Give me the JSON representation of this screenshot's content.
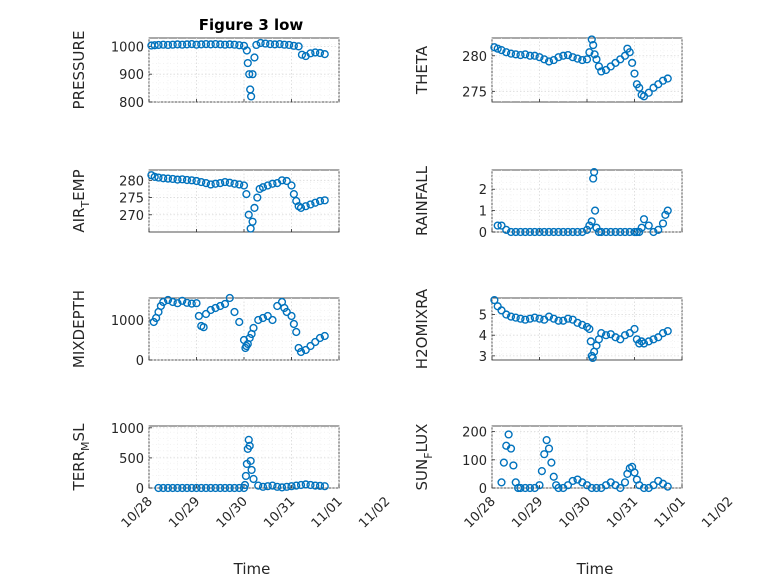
{
  "figure_title": "Figure 3 low",
  "chart_data": [
    {
      "type": "scatter",
      "title": "Figure 3 low",
      "ylabel": "PRESSURE",
      "ylim": [
        800,
        1030
      ],
      "yticks": [
        800,
        900,
        1000
      ],
      "xlim": [
        0,
        4
      ],
      "xticks": [],
      "x": [
        0.05,
        0.12,
        0.2,
        0.3,
        0.4,
        0.5,
        0.6,
        0.7,
        0.8,
        0.9,
        1.0,
        1.1,
        1.2,
        1.3,
        1.4,
        1.5,
        1.6,
        1.7,
        1.8,
        1.9,
        2.0,
        2.06,
        2.08,
        2.11,
        2.13,
        2.15,
        2.18,
        2.22,
        2.26,
        2.35,
        2.45,
        2.55,
        2.65,
        2.75,
        2.85,
        2.95,
        3.05,
        3.15,
        3.22,
        3.3,
        3.4,
        3.5,
        3.6,
        3.7
      ],
      "y": [
        1003,
        1004,
        1005,
        1006,
        1005,
        1006,
        1007,
        1006,
        1007,
        1008,
        1006,
        1007,
        1008,
        1007,
        1008,
        1007,
        1006,
        1007,
        1006,
        1004,
        1002,
        985,
        940,
        900,
        845,
        820,
        900,
        960,
        1005,
        1012,
        1010,
        1008,
        1007,
        1008,
        1006,
        1005,
        1002,
        1000,
        970,
        965,
        975,
        978,
        976,
        972
      ]
    },
    {
      "type": "scatter",
      "ylabel": "THETA",
      "ylim": [
        273.5,
        282.5
      ],
      "yticks": [
        275,
        280
      ],
      "xlim": [
        0,
        4
      ],
      "xticks": [],
      "x": [
        0.05,
        0.12,
        0.2,
        0.3,
        0.4,
        0.5,
        0.6,
        0.7,
        0.8,
        0.9,
        1.0,
        1.1,
        1.2,
        1.3,
        1.4,
        1.5,
        1.6,
        1.7,
        1.8,
        1.9,
        2.0,
        2.05,
        2.1,
        2.13,
        2.16,
        2.2,
        2.25,
        2.3,
        2.4,
        2.5,
        2.6,
        2.7,
        2.8,
        2.85,
        2.9,
        2.95,
        3.0,
        3.05,
        3.1,
        3.15,
        3.2,
        3.3,
        3.4,
        3.5,
        3.6,
        3.7
      ],
      "y": [
        281.2,
        281,
        280.8,
        280.5,
        280.3,
        280.2,
        280.1,
        280.2,
        280,
        280,
        279.8,
        279.5,
        279.2,
        279.4,
        279.8,
        280,
        280.1,
        279.8,
        279.6,
        279.4,
        279.5,
        280.5,
        282.3,
        281.5,
        280.2,
        279.5,
        278.5,
        277.8,
        278,
        278.5,
        279,
        279.5,
        280,
        281,
        280.5,
        279,
        277.5,
        276,
        275.5,
        274.5,
        274.3,
        274.8,
        275.5,
        276,
        276.5,
        276.8
      ]
    },
    {
      "type": "scatter",
      "ylabel": "AIR_TEMP",
      "ylim": [
        265,
        283
      ],
      "yticks": [
        270,
        275,
        280
      ],
      "xlim": [
        0,
        4
      ],
      "xticks": [],
      "x": [
        0.05,
        0.12,
        0.2,
        0.3,
        0.4,
        0.5,
        0.6,
        0.7,
        0.8,
        0.9,
        1.0,
        1.1,
        1.2,
        1.3,
        1.4,
        1.5,
        1.6,
        1.7,
        1.8,
        1.9,
        2.0,
        2.05,
        2.1,
        2.14,
        2.18,
        2.22,
        2.28,
        2.33,
        2.4,
        2.5,
        2.6,
        2.7,
        2.8,
        2.9,
        3.0,
        3.05,
        3.1,
        3.15,
        3.2,
        3.3,
        3.4,
        3.5,
        3.6,
        3.7
      ],
      "y": [
        281.5,
        281,
        280.8,
        280.6,
        280.5,
        280.4,
        280.2,
        280.3,
        280.1,
        280,
        279.8,
        279.5,
        279.2,
        278.8,
        279,
        279.2,
        279.5,
        279.3,
        279,
        278.8,
        278.5,
        276,
        270,
        266,
        268,
        272,
        275,
        277.5,
        278,
        278.5,
        279,
        279.2,
        280,
        279.8,
        278.5,
        276,
        274,
        272.5,
        272,
        272.5,
        273,
        273.5,
        274,
        274.2
      ]
    },
    {
      "type": "scatter",
      "ylabel": "RAINFALL",
      "ylim": [
        0,
        2.9
      ],
      "yticks": [
        0,
        1,
        2
      ],
      "xlim": [
        0,
        4
      ],
      "xticks": [],
      "x": [
        0.12,
        0.2,
        0.3,
        0.4,
        0.5,
        0.6,
        0.7,
        0.8,
        0.9,
        1.0,
        1.1,
        1.2,
        1.3,
        1.4,
        1.5,
        1.6,
        1.7,
        1.8,
        1.9,
        2.0,
        2.05,
        2.1,
        2.13,
        2.15,
        2.17,
        2.2,
        2.25,
        2.3,
        2.4,
        2.5,
        2.6,
        2.7,
        2.8,
        2.9,
        3.0,
        3.05,
        3.1,
        3.15,
        3.2,
        3.3,
        3.4,
        3.5,
        3.6,
        3.65,
        3.7
      ],
      "y": [
        0.3,
        0.3,
        0.1,
        0,
        0,
        0,
        0,
        0,
        0,
        0,
        0,
        0,
        0,
        0,
        0,
        0,
        0,
        0,
        0,
        0.1,
        0.3,
        0.5,
        2.5,
        2.8,
        1.0,
        0.2,
        0,
        0,
        0,
        0,
        0,
        0,
        0,
        0,
        0,
        0,
        0,
        0.2,
        0.6,
        0.3,
        0,
        0.1,
        0.4,
        0.8,
        1.0
      ]
    },
    {
      "type": "scatter",
      "ylabel": "MIXDEPTH",
      "ylim": [
        0,
        1550
      ],
      "yticks": [
        0,
        1000
      ],
      "xlim": [
        0,
        4
      ],
      "xticks": [],
      "x": [
        0.1,
        0.15,
        0.2,
        0.25,
        0.3,
        0.4,
        0.5,
        0.6,
        0.7,
        0.8,
        0.9,
        1.0,
        1.05,
        1.1,
        1.15,
        1.2,
        1.3,
        1.4,
        1.5,
        1.6,
        1.7,
        1.8,
        1.9,
        2.0,
        2.03,
        2.05,
        2.08,
        2.12,
        2.16,
        2.2,
        2.3,
        2.4,
        2.5,
        2.6,
        2.7,
        2.8,
        2.85,
        2.9,
        3.0,
        3.05,
        3.1,
        3.15,
        3.2,
        3.3,
        3.4,
        3.5,
        3.6,
        3.7
      ],
      "y": [
        950,
        1050,
        1200,
        1350,
        1450,
        1500,
        1450,
        1420,
        1480,
        1430,
        1410,
        1420,
        1100,
        850,
        820,
        1150,
        1250,
        1300,
        1350,
        1400,
        1550,
        1200,
        950,
        500,
        300,
        350,
        400,
        550,
        650,
        800,
        1000,
        1050,
        1100,
        1000,
        1350,
        1450,
        1300,
        1200,
        1100,
        900,
        700,
        300,
        200,
        250,
        350,
        450,
        550,
        600
      ]
    },
    {
      "type": "scatter",
      "ylabel": "H2OMIXRA",
      "ylim": [
        2.8,
        5.8
      ],
      "yticks": [
        3,
        4,
        5
      ],
      "xlim": [
        0,
        4
      ],
      "xticks": [],
      "x": [
        0.05,
        0.12,
        0.2,
        0.3,
        0.4,
        0.5,
        0.6,
        0.7,
        0.8,
        0.9,
        1.0,
        1.1,
        1.2,
        1.3,
        1.4,
        1.5,
        1.6,
        1.7,
        1.8,
        1.9,
        2.0,
        2.05,
        2.08,
        2.1,
        2.12,
        2.15,
        2.2,
        2.25,
        2.3,
        2.4,
        2.5,
        2.6,
        2.7,
        2.8,
        2.9,
        3.0,
        3.05,
        3.1,
        3.15,
        3.2,
        3.3,
        3.4,
        3.5,
        3.6,
        3.7
      ],
      "y": [
        5.7,
        5.4,
        5.2,
        5.0,
        4.9,
        4.85,
        4.8,
        4.75,
        4.8,
        4.85,
        4.8,
        4.75,
        4.9,
        4.8,
        4.7,
        4.7,
        4.8,
        4.75,
        4.6,
        4.5,
        4.4,
        4.3,
        3.7,
        3.0,
        2.9,
        3.2,
        3.5,
        3.8,
        4.1,
        4.0,
        4.05,
        3.9,
        3.8,
        4.0,
        4.1,
        4.3,
        3.8,
        3.6,
        3.7,
        3.6,
        3.7,
        3.8,
        3.9,
        4.1,
        4.2
      ]
    },
    {
      "type": "scatter",
      "ylabel": "TERR_MSL",
      "ylim": [
        0,
        1030
      ],
      "yticks": [
        0,
        500,
        1000
      ],
      "xlim": [
        0,
        4
      ],
      "xticks": [
        "10/28",
        "10/29",
        "10/30",
        "10/31",
        "11/01",
        "11/02"
      ],
      "xlabel": "Time",
      "x": [
        0.2,
        0.3,
        0.4,
        0.5,
        0.6,
        0.7,
        0.8,
        0.9,
        1.0,
        1.1,
        1.2,
        1.3,
        1.4,
        1.5,
        1.6,
        1.7,
        1.8,
        1.9,
        2.0,
        2.02,
        2.04,
        2.06,
        2.08,
        2.1,
        2.12,
        2.14,
        2.16,
        2.2,
        2.3,
        2.4,
        2.5,
        2.6,
        2.7,
        2.8,
        2.9,
        3.0,
        3.1,
        3.2,
        3.3,
        3.4,
        3.5,
        3.6,
        3.7
      ],
      "y": [
        0,
        0,
        0,
        0,
        0,
        0,
        0,
        0,
        0,
        0,
        0,
        0,
        0,
        0,
        0,
        0,
        0,
        0,
        0,
        50,
        200,
        400,
        650,
        800,
        700,
        450,
        300,
        150,
        40,
        20,
        30,
        40,
        20,
        10,
        20,
        30,
        40,
        50,
        60,
        50,
        40,
        35,
        30
      ]
    },
    {
      "type": "scatter",
      "ylabel": "SUN_FLUX",
      "ylim": [
        0,
        220
      ],
      "yticks": [
        0,
        100,
        200
      ],
      "xlim": [
        0,
        4
      ],
      "xticks": [
        "10/28",
        "10/29",
        "10/30",
        "10/31",
        "11/01",
        "11/02"
      ],
      "xlabel": "Time",
      "x": [
        0.2,
        0.25,
        0.3,
        0.35,
        0.4,
        0.45,
        0.5,
        0.55,
        0.6,
        0.7,
        0.8,
        0.9,
        1.0,
        1.05,
        1.1,
        1.15,
        1.2,
        1.25,
        1.3,
        1.35,
        1.4,
        1.5,
        1.6,
        1.7,
        1.8,
        1.9,
        2.0,
        2.1,
        2.2,
        2.3,
        2.4,
        2.5,
        2.6,
        2.7,
        2.8,
        2.85,
        2.9,
        2.95,
        3.0,
        3.05,
        3.1,
        3.2,
        3.3,
        3.4,
        3.5,
        3.6,
        3.7
      ],
      "y": [
        20,
        90,
        150,
        190,
        140,
        80,
        20,
        0,
        0,
        0,
        0,
        0,
        10,
        60,
        120,
        170,
        140,
        90,
        40,
        10,
        0,
        0,
        10,
        25,
        30,
        20,
        10,
        0,
        0,
        0,
        10,
        20,
        10,
        0,
        20,
        50,
        70,
        75,
        55,
        30,
        10,
        0,
        0,
        10,
        25,
        15,
        5
      ]
    }
  ]
}
